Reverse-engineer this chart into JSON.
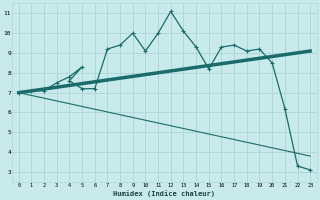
{
  "xlabel": "Humidex (Indice chaleur)",
  "bg_color": "#c8eaea",
  "grid_color": "#b0d8d8",
  "line_color": "#1a6b6b",
  "xlim": [
    -0.5,
    23.5
  ],
  "ylim": [
    2.5,
    11.5
  ],
  "xticks": [
    0,
    1,
    2,
    3,
    4,
    5,
    6,
    7,
    8,
    9,
    10,
    11,
    12,
    13,
    14,
    15,
    16,
    17,
    18,
    19,
    20,
    21,
    22,
    23
  ],
  "yticks": [
    3,
    4,
    5,
    6,
    7,
    8,
    9,
    10,
    11
  ],
  "curve_x": [
    0,
    1,
    2,
    3,
    4,
    5,
    4,
    5,
    6,
    7,
    8,
    9,
    10,
    11,
    12,
    13,
    14,
    15,
    16,
    17,
    18,
    19,
    20,
    21,
    22,
    23
  ],
  "curve_y": [
    7.0,
    7.1,
    7.1,
    7.5,
    7.8,
    8.3,
    7.6,
    7.2,
    7.2,
    9.2,
    9.4,
    10.0,
    9.1,
    10.0,
    11.1,
    10.1,
    9.3,
    8.2,
    9.3,
    9.4,
    9.1,
    9.2,
    8.5,
    6.2,
    3.3,
    3.1
  ],
  "trend1_x": [
    0,
    23
  ],
  "trend1_y": [
    7.0,
    9.1
  ],
  "trend2_x": [
    0,
    23
  ],
  "trend2_y": [
    7.0,
    3.8
  ]
}
